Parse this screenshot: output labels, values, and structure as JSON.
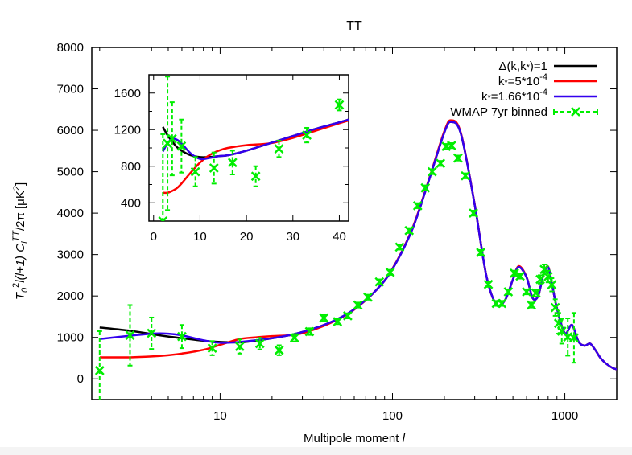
{
  "chart_data": {
    "type": "line",
    "title": "TT",
    "xlabel": "Multipole moment l",
    "ylabel": "T0^2 l(l+1) Cl^TT/2π [μK^2]",
    "xscale": "log",
    "xlim": [
      1.8,
      2000
    ],
    "ylim": [
      -500,
      8000
    ],
    "xticks": [
      10,
      100,
      1000
    ],
    "xtick_labels": [
      "10",
      "100",
      "1000"
    ],
    "yticks": [
      0,
      1000,
      2000,
      3000,
      4000,
      5000,
      6000,
      7000,
      8000
    ],
    "ytick_labels": [
      "0",
      "1000",
      "2000",
      "3000",
      "4000",
      "5000",
      "6000",
      "7000",
      "8000"
    ],
    "grid": false,
    "legend_position": "top-right",
    "series": [
      {
        "name": "Δ(k,k*)=1",
        "color": "#000000",
        "x": [
          2,
          3,
          4,
          5,
          6,
          8,
          10,
          13,
          16,
          20,
          25,
          30,
          40,
          50,
          60,
          80,
          100,
          130,
          160,
          200,
          220,
          250,
          300,
          350,
          400,
          450,
          500,
          540,
          600,
          650,
          700,
          750,
          800,
          850,
          900,
          1000,
          1100,
          1200,
          1300,
          1400,
          1500,
          1600,
          1700,
          1800,
          1900,
          2000
        ],
        "y": [
          1240,
          1160,
          1080,
          1020,
          980,
          920,
          890,
          880,
          920,
          980,
          1050,
          1130,
          1300,
          1480,
          1680,
          2130,
          2650,
          3600,
          4700,
          5950,
          6200,
          5900,
          4200,
          2500,
          1800,
          1900,
          2400,
          2700,
          2450,
          1950,
          2000,
          2500,
          2700,
          2200,
          1700,
          1100,
          1300,
          900,
          800,
          850,
          700,
          520,
          400,
          320,
          260,
          230
        ]
      },
      {
        "name": "k*=5*10^-4",
        "color": "#ff0000",
        "x": [
          2,
          3,
          4,
          5,
          6,
          8,
          10,
          13,
          16,
          20,
          25,
          30,
          40,
          50,
          60,
          80,
          100,
          130,
          160,
          200,
          220,
          250,
          300,
          350,
          400,
          450,
          500,
          540,
          600,
          650,
          700,
          750,
          800,
          850,
          900,
          1000,
          1100,
          1200,
          1300,
          1400,
          1500,
          1600,
          1700,
          1800,
          1900,
          2000
        ],
        "y": [
          520,
          520,
          540,
          570,
          610,
          700,
          820,
          960,
          1000,
          1030,
          1050,
          1100,
          1280,
          1470,
          1670,
          2130,
          2660,
          3620,
          4720,
          5980,
          6240,
          5920,
          4210,
          2500,
          1800,
          1900,
          2400,
          2720,
          2460,
          1950,
          2000,
          2500,
          2710,
          2200,
          1700,
          1100,
          1300,
          900,
          800,
          850,
          700,
          520,
          400,
          320,
          260,
          230
        ]
      },
      {
        "name": "k*=1.66*10^-4",
        "color": "#3300ee",
        "x": [
          2,
          3,
          4,
          5,
          6,
          8,
          10,
          13,
          16,
          20,
          25,
          30,
          40,
          50,
          60,
          80,
          100,
          130,
          160,
          200,
          220,
          250,
          300,
          350,
          400,
          450,
          500,
          540,
          600,
          650,
          700,
          750,
          800,
          850,
          900,
          1000,
          1100,
          1200,
          1300,
          1400,
          1500,
          1600,
          1700,
          1800,
          1900,
          2000
        ],
        "y": [
          960,
          1040,
          1090,
          1090,
          1050,
          930,
          870,
          890,
          930,
          980,
          1050,
          1130,
          1300,
          1480,
          1680,
          2130,
          2650,
          3600,
          4700,
          5950,
          6200,
          5900,
          4200,
          2500,
          1800,
          1900,
          2400,
          2700,
          2450,
          1950,
          2000,
          2500,
          2700,
          2200,
          1700,
          1100,
          1300,
          900,
          800,
          850,
          700,
          520,
          400,
          320,
          260,
          230
        ]
      },
      {
        "name": "WMAP 7yr binned",
        "color": "#00ee00",
        "style": "errorbars",
        "x": [
          2,
          3,
          4,
          6,
          9,
          13,
          17,
          22,
          27,
          33,
          40,
          48,
          55,
          63,
          72,
          84,
          97,
          110,
          125,
          140,
          155,
          170,
          190,
          205,
          220,
          240,
          265,
          295,
          325,
          360,
          400,
          430,
          470,
          510,
          550,
          600,
          640,
          680,
          720,
          760,
          800,
          840,
          880,
          920,
          960,
          1040,
          1130
        ],
        "y": [
          200,
          1050,
          1100,
          1020,
          740,
          780,
          850,
          690,
          990,
          1140,
          1470,
          1380,
          1520,
          1780,
          1970,
          2340,
          2570,
          3180,
          3580,
          4180,
          4610,
          5000,
          5200,
          5610,
          5630,
          5330,
          4900,
          4000,
          3050,
          2280,
          1820,
          1820,
          2100,
          2550,
          2480,
          2100,
          1780,
          2070,
          2400,
          2640,
          2470,
          2270,
          1720,
          1340,
          1150,
          1010,
          990
        ],
        "err": [
          950,
          730,
          380,
          280,
          170,
          170,
          140,
          120,
          90,
          80,
          70,
          60,
          60,
          60,
          60,
          60,
          60,
          60,
          60,
          60,
          60,
          60,
          60,
          60,
          60,
          60,
          60,
          60,
          60,
          60,
          60,
          60,
          60,
          60,
          60,
          60,
          60,
          80,
          100,
          120,
          140,
          160,
          200,
          250,
          300,
          450,
          600
        ]
      }
    ],
    "inset": {
      "type": "line",
      "xlim": [
        -1,
        42
      ],
      "ylim": [
        200,
        1800
      ],
      "xticks": [
        0,
        10,
        20,
        30,
        40
      ],
      "xtick_labels": [
        "0",
        "10",
        "20",
        "30",
        "40"
      ],
      "yticks": [
        400,
        800,
        1200,
        1600
      ],
      "ytick_labels": [
        "400",
        "800",
        "1200",
        "1600"
      ],
      "series": [
        {
          "name": "Δ(k,k*)=1",
          "color": "#000000",
          "x": [
            2,
            3,
            4,
            5,
            6,
            8,
            10,
            12,
            14,
            16,
            20,
            25,
            30,
            35,
            40,
            42
          ],
          "y": [
            1230,
            1140,
            1070,
            1010,
            970,
            920,
            900,
            900,
            910,
            920,
            970,
            1050,
            1130,
            1210,
            1280,
            1310
          ]
        },
        {
          "name": "k*=5*10^-4",
          "color": "#ff0000",
          "x": [
            2,
            3,
            4,
            5,
            6,
            8,
            10,
            12,
            14,
            16,
            20,
            25,
            30,
            35,
            40,
            42
          ],
          "y": [
            510,
            510,
            530,
            560,
            610,
            730,
            840,
            920,
            970,
            1000,
            1030,
            1050,
            1110,
            1190,
            1270,
            1300
          ]
        },
        {
          "name": "k*=1.66*10^-4",
          "color": "#3300ee",
          "x": [
            2,
            3,
            4,
            5,
            6,
            8,
            10,
            12,
            14,
            16,
            20,
            25,
            30,
            35,
            40,
            42
          ],
          "y": [
            960,
            1050,
            1100,
            1090,
            1050,
            940,
            880,
            890,
            910,
            920,
            970,
            1050,
            1130,
            1210,
            1280,
            1310
          ]
        },
        {
          "name": "WMAP 7yr binned",
          "color": "#00ee00",
          "style": "errorbars",
          "x": [
            2,
            3,
            4,
            6,
            9,
            13,
            17,
            22,
            27,
            33,
            40
          ],
          "y": [
            200,
            1050,
            1100,
            1020,
            740,
            780,
            840,
            690,
            990,
            1140,
            1470
          ],
          "err": [
            950,
            730,
            400,
            290,
            160,
            170,
            130,
            110,
            90,
            80,
            60
          ]
        }
      ]
    }
  }
}
